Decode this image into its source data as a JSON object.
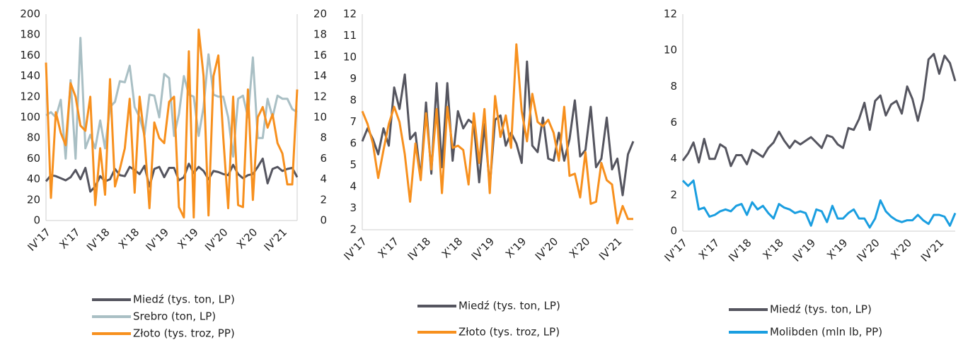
{
  "chart_data": [
    {
      "type": "line",
      "categories": [
        "IV'17",
        null,
        null,
        null,
        null,
        null,
        "X'17",
        null,
        null,
        null,
        null,
        null,
        "IV'18",
        null,
        null,
        null,
        null,
        null,
        "X'18",
        null,
        null,
        null,
        null,
        null,
        "IV'19",
        null,
        null,
        null,
        null,
        null,
        "X'19",
        null,
        null,
        null,
        null,
        null,
        "IV'20",
        null,
        null,
        null,
        null,
        null,
        "X'20",
        null,
        null,
        null,
        null,
        null,
        "IV'21",
        null,
        null,
        null
      ],
      "ylim": [
        0,
        200
      ],
      "yticks": [
        0,
        20,
        40,
        60,
        80,
        100,
        120,
        140,
        160,
        180,
        200
      ],
      "y2lim": [
        0,
        20
      ],
      "y2ticks": [
        0,
        2,
        4,
        6,
        8,
        10,
        12,
        14,
        16,
        18,
        20
      ],
      "series": [
        {
          "name": "Miedź (tys. ton, LP)",
          "color": "#55555f",
          "values": [
            38,
            44,
            43,
            41,
            39,
            42,
            49,
            40,
            51,
            28,
            33,
            43,
            38,
            40,
            50,
            44,
            43,
            52,
            49,
            45,
            53,
            33,
            50,
            52,
            42,
            51,
            51,
            39,
            42,
            55,
            46,
            52,
            48,
            40,
            48,
            47,
            45,
            44,
            54,
            45,
            41,
            44,
            45,
            52,
            60,
            36,
            50,
            52,
            48,
            50,
            51,
            42
          ]
        },
        {
          "name": "Srebro (ton, LP)",
          "color": "#a9bfc4",
          "values": [
            102,
            105,
            100,
            117,
            60,
            136,
            60,
            177,
            70,
            83,
            70,
            97,
            70,
            110,
            115,
            135,
            134,
            150,
            110,
            100,
            83,
            122,
            121,
            100,
            142,
            138,
            82,
            103,
            140,
            122,
            120,
            82,
            110,
            161,
            122,
            120,
            120,
            100,
            62,
            118,
            121,
            100,
            158,
            80,
            80,
            118,
            100,
            121,
            118,
            118,
            108,
            105
          ]
        },
        {
          "name": "Złoto (tys. troz, PP)",
          "color": "#f7901e",
          "axis": "y2",
          "values": [
            15.3,
            2.2,
            10.5,
            8.5,
            7.3,
            13.3,
            12,
            9.2,
            8.7,
            12,
            1.5,
            7,
            2.5,
            13.7,
            3.3,
            5,
            7,
            11.8,
            2.7,
            12,
            8,
            1.2,
            9.5,
            8,
            7.5,
            11.5,
            12,
            1.3,
            0.3,
            16.4,
            0.3,
            18.5,
            14,
            0.5,
            14,
            16,
            8,
            1.2,
            12,
            1.5,
            1.3,
            12.7,
            2,
            10,
            11,
            9,
            10.3,
            7.5,
            6.5,
            3.5,
            3.5,
            12.7
          ]
        }
      ]
    },
    {
      "type": "line",
      "categories": [
        "IV'17",
        null,
        null,
        null,
        null,
        null,
        "X'17",
        null,
        null,
        null,
        null,
        null,
        "IV'18",
        null,
        null,
        null,
        null,
        null,
        "X'18",
        null,
        null,
        null,
        null,
        null,
        "IV'19",
        null,
        null,
        null,
        null,
        null,
        "X'19",
        null,
        null,
        null,
        null,
        null,
        "IV'20",
        null,
        null,
        null,
        null,
        null,
        "X'20",
        null,
        null,
        null,
        null,
        null,
        "IV'21",
        null,
        null,
        null
      ],
      "ylim": [
        2,
        12
      ],
      "yticks": [
        2,
        3,
        4,
        5,
        6,
        7,
        8,
        9,
        10,
        11,
        12
      ],
      "series": [
        {
          "name": "Miedź (tys. ton, LP)",
          "color": "#55555f",
          "values": [
            6.1,
            6.7,
            6.2,
            5.5,
            6.7,
            5.9,
            8.6,
            7.6,
            9.2,
            6.2,
            6.5,
            4.4,
            7.9,
            4.6,
            8.8,
            4.9,
            8.8,
            5.2,
            7.5,
            6.7,
            7.1,
            6.9,
            4.2,
            6.9,
            4.0,
            7.1,
            7.3,
            5.9,
            6.5,
            6.0,
            5.1,
            9.8,
            5.9,
            5.6,
            7.2,
            5.3,
            5.2,
            6.5,
            5.2,
            6.2,
            8.0,
            5.4,
            5.7,
            7.7,
            4.9,
            5.3,
            7.2,
            4.8,
            5.3,
            3.6,
            5.5,
            6.1
          ]
        },
        {
          "name": "Złoto (tys. troz, LP)",
          "color": "#f7901e",
          "values": [
            7.5,
            6.9,
            6.0,
            4.4,
            5.7,
            6.9,
            7.7,
            7.0,
            5.5,
            3.3,
            6.0,
            4.3,
            7.4,
            4.8,
            7.6,
            3.7,
            7.7,
            5.8,
            5.9,
            5.7,
            4.1,
            7.4,
            5.1,
            7.6,
            3.7,
            8.2,
            6.3,
            7.3,
            5.8,
            10.6,
            7.5,
            6.1,
            8.3,
            7.0,
            6.8,
            7.1,
            6.5,
            5.2,
            7.7,
            4.5,
            4.6,
            3.5,
            5.6,
            3.2,
            3.3,
            5.1,
            4.3,
            4.1,
            2.3,
            3.1,
            2.5,
            2.5
          ]
        }
      ]
    },
    {
      "type": "line",
      "categories": [
        "IV'17",
        null,
        null,
        null,
        null,
        null,
        "X'17",
        null,
        null,
        null,
        null,
        null,
        "IV'18",
        null,
        null,
        null,
        null,
        null,
        "X'18",
        null,
        null,
        null,
        null,
        null,
        "IV'19",
        null,
        null,
        null,
        null,
        null,
        "X'19",
        null,
        null,
        null,
        null,
        null,
        "IV'20",
        null,
        null,
        null,
        null,
        null,
        "X'20",
        null,
        null,
        null,
        null,
        null,
        "IV'21",
        null,
        null,
        null
      ],
      "ylim": [
        0,
        12
      ],
      "yticks": [
        0,
        2,
        4,
        6,
        8,
        10,
        12
      ],
      "series": [
        {
          "name": "Miedź (tys. ton, LP)",
          "color": "#55555f",
          "values": [
            3.9,
            4.3,
            4.9,
            3.8,
            5.1,
            4.0,
            4.0,
            4.8,
            4.6,
            3.6,
            4.2,
            4.2,
            3.7,
            4.5,
            4.3,
            4.1,
            4.6,
            4.9,
            5.5,
            5.0,
            4.6,
            5.0,
            4.8,
            5.0,
            5.2,
            4.9,
            4.6,
            5.3,
            5.2,
            4.8,
            4.6,
            5.7,
            5.6,
            6.2,
            7.1,
            5.6,
            7.2,
            7.5,
            6.4,
            7.0,
            7.2,
            6.5,
            8.0,
            7.3,
            6.1,
            7.3,
            9.5,
            9.8,
            8.7,
            9.7,
            9.3,
            8.3
          ]
        },
        {
          "name": "Molibden (mln lb, PP)",
          "color": "#1a9ee0",
          "values": [
            2.8,
            2.5,
            2.8,
            1.2,
            1.3,
            0.8,
            0.9,
            1.1,
            1.2,
            1.1,
            1.4,
            1.5,
            0.9,
            1.6,
            1.2,
            1.4,
            1.0,
            0.7,
            1.5,
            1.3,
            1.2,
            1.0,
            1.1,
            1.0,
            0.3,
            1.2,
            1.1,
            0.5,
            1.4,
            0.7,
            0.7,
            1.0,
            1.2,
            0.7,
            0.7,
            0.2,
            0.7,
            1.7,
            1.1,
            0.8,
            0.6,
            0.5,
            0.6,
            0.6,
            0.9,
            0.6,
            0.4,
            0.9,
            0.9,
            0.8,
            0.3,
            1.0
          ]
        }
      ]
    }
  ]
}
